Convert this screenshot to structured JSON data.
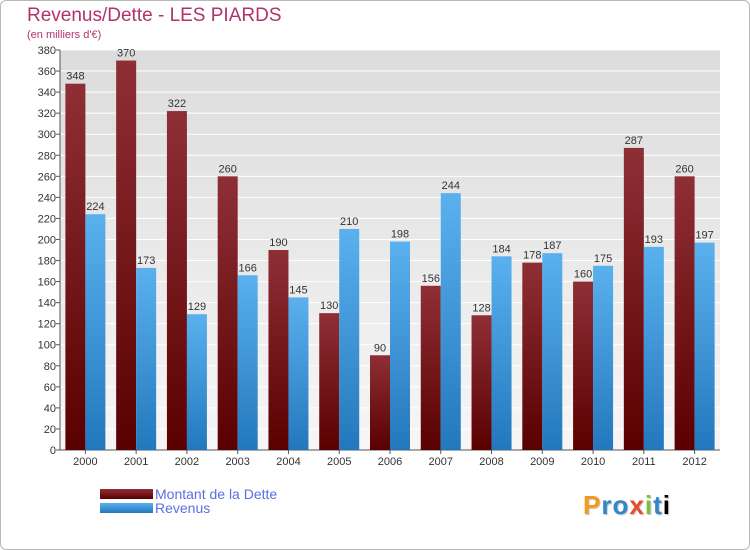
{
  "chart_data": {
    "type": "bar",
    "title": "Revenus/Dette - LES PIARDS",
    "subtitle": "(en milliers d'€)",
    "categories": [
      "2000",
      "2001",
      "2002",
      "2003",
      "2004",
      "2005",
      "2006",
      "2007",
      "2008",
      "2009",
      "2010",
      "2011",
      "2012"
    ],
    "series": [
      {
        "name": "Montant de la Dette",
        "color": "#7a1a1a",
        "values": [
          348,
          370,
          322,
          260,
          190,
          130,
          90,
          156,
          128,
          178,
          160,
          287,
          260
        ]
      },
      {
        "name": "Revenus",
        "color": "#4aa6e8",
        "values": [
          224,
          173,
          129,
          166,
          145,
          210,
          198,
          244,
          184,
          187,
          175,
          193,
          197
        ]
      }
    ],
    "ylim": [
      0,
      380
    ],
    "ytick_step": 20,
    "grid": true,
    "legend_position": "bottom-left"
  },
  "logo": {
    "letters": [
      "P",
      "r",
      "o",
      "x",
      "i",
      "t",
      "i"
    ],
    "text": "Proxiti"
  }
}
